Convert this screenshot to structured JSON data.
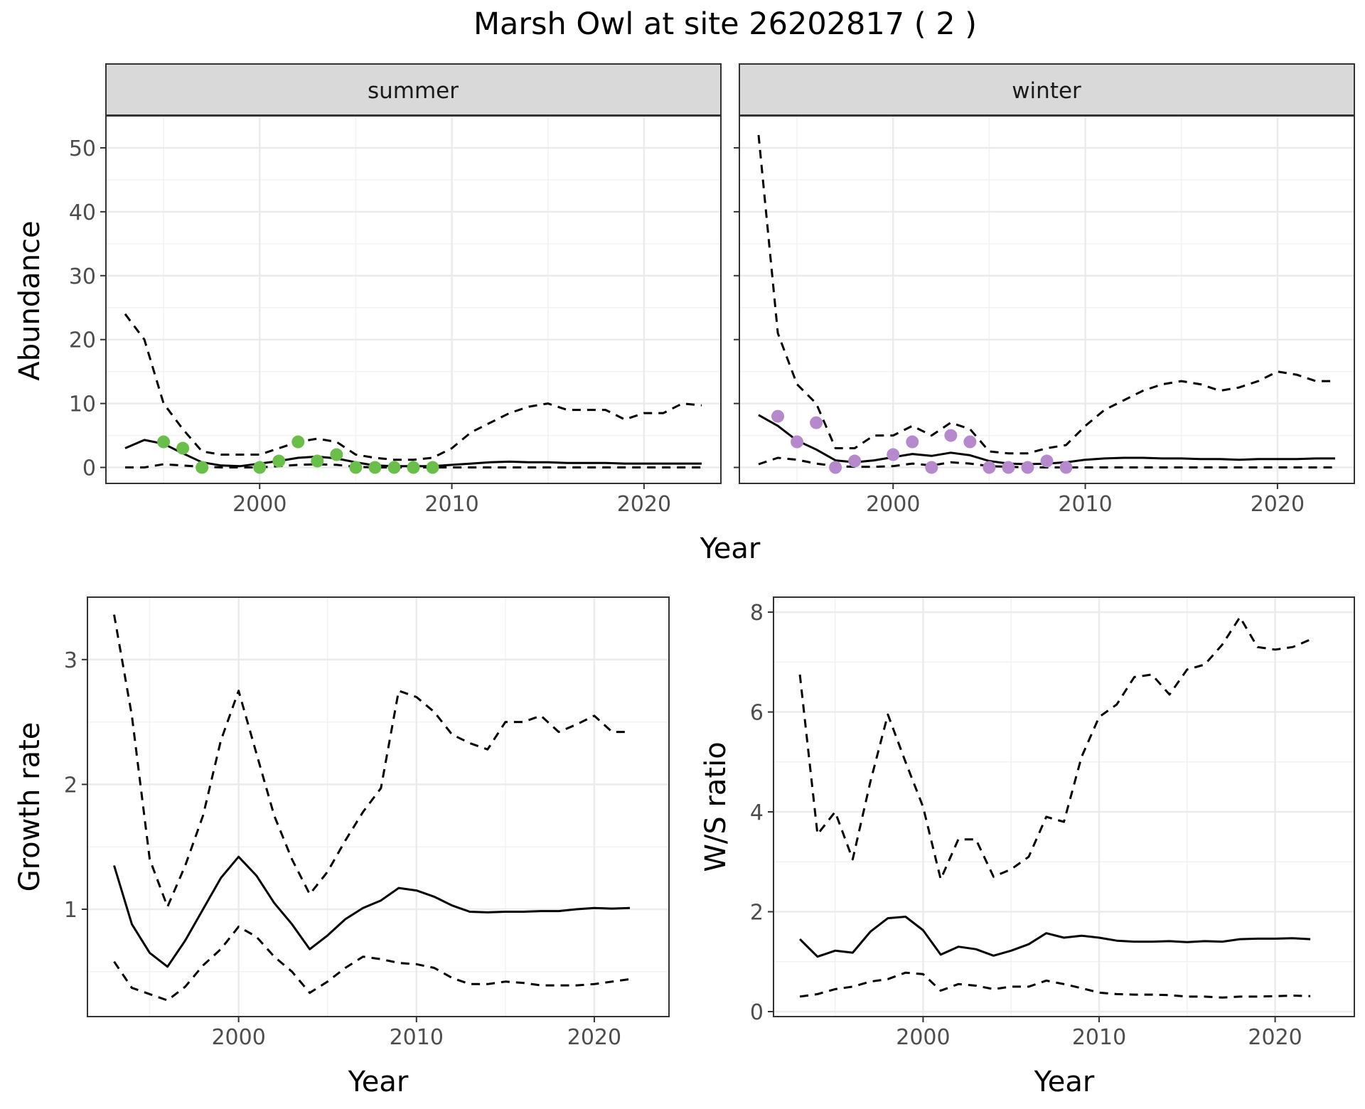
{
  "title": "Marsh Owl at site 26202817 ( 2 )",
  "colors": {
    "summer_points": "#6ABF4B",
    "winter_points": "#B589CC",
    "lines": "#000000",
    "strip_fill": "#D9D9D9",
    "grid_major": "#EBEBEB",
    "grid_minor": "#F2F2F2",
    "tick_text": "#4D4D4D"
  },
  "chart_data": [
    {
      "type": "line",
      "panel": "summer",
      "strip_label": "summer",
      "xlabel": "Year",
      "ylabel": "Abundance",
      "xlim": [
        1992,
        2024
      ],
      "ylim": [
        -2.5,
        55
      ],
      "xticks": [
        2000,
        2010,
        2020
      ],
      "yticks": [
        0,
        10,
        20,
        30,
        40,
        50
      ],
      "x": [
        1993,
        1994,
        1995,
        1996,
        1997,
        1998,
        1999,
        2000,
        2001,
        2002,
        2003,
        2004,
        2005,
        2006,
        2007,
        2008,
        2009,
        2010,
        2011,
        2012,
        2013,
        2014,
        2015,
        2016,
        2017,
        2018,
        2019,
        2020,
        2021,
        2022,
        2023
      ],
      "series": [
        {
          "style": "solid",
          "values": [
            3,
            4.3,
            3.7,
            2.2,
            0.8,
            0.3,
            0.2,
            0.6,
            1.0,
            1.5,
            1.7,
            1.4,
            0.8,
            0.3,
            0.2,
            0.2,
            0.2,
            0.4,
            0.6,
            0.8,
            0.9,
            0.8,
            0.8,
            0.7,
            0.7,
            0.7,
            0.6,
            0.6,
            0.6,
            0.6,
            0.6
          ]
        },
        {
          "style": "dashed",
          "values": [
            24,
            20,
            10,
            6,
            2.5,
            2,
            2,
            2,
            3,
            4,
            4.5,
            4,
            2,
            1.5,
            1.2,
            1.2,
            1.5,
            3,
            5.5,
            7,
            8.5,
            9.5,
            10,
            9,
            9,
            9,
            7.5,
            8.5,
            8.5,
            10,
            9.7
          ]
        },
        {
          "style": "dashed",
          "values": [
            0,
            0,
            0.5,
            0.3,
            0.1,
            0,
            0,
            0,
            0.2,
            0.4,
            0.5,
            0.4,
            0.1,
            0,
            0,
            0,
            0,
            0,
            0,
            0,
            0,
            0,
            0,
            0,
            0,
            0,
            0,
            0,
            0,
            0,
            0
          ]
        }
      ],
      "points": {
        "x": [
          1995,
          1996,
          1997,
          2000,
          2001,
          2002,
          2003,
          2004,
          2005,
          2006,
          2007,
          2008,
          2009
        ],
        "y": [
          4,
          3,
          0,
          0,
          1,
          4,
          1,
          2,
          0,
          0,
          0,
          0,
          0
        ]
      }
    },
    {
      "type": "line",
      "panel": "winter",
      "strip_label": "winter",
      "xlabel": "Year",
      "ylabel": "Abundance",
      "xlim": [
        1992,
        2024
      ],
      "ylim": [
        -2.5,
        55
      ],
      "xticks": [
        2000,
        2010,
        2020
      ],
      "yticks": [
        0,
        10,
        20,
        30,
        40,
        50
      ],
      "x": [
        1993,
        1994,
        1995,
        1996,
        1997,
        1998,
        1999,
        2000,
        2001,
        2002,
        2003,
        2004,
        2005,
        2006,
        2007,
        2008,
        2009,
        2010,
        2011,
        2012,
        2013,
        2014,
        2015,
        2016,
        2017,
        2018,
        2019,
        2020,
        2021,
        2022,
        2023
      ],
      "series": [
        {
          "style": "solid",
          "values": [
            8.2,
            6.5,
            4.2,
            2.8,
            1.1,
            0.8,
            1.1,
            1.6,
            2.1,
            1.8,
            2.3,
            1.9,
            1.0,
            0.6,
            0.5,
            0.6,
            0.8,
            1.2,
            1.4,
            1.5,
            1.5,
            1.4,
            1.4,
            1.3,
            1.3,
            1.2,
            1.3,
            1.3,
            1.3,
            1.4,
            1.4
          ]
        },
        {
          "style": "dashed",
          "values": [
            52,
            21,
            13,
            10,
            3,
            3,
            5,
            5,
            6.5,
            5,
            7,
            6,
            2.5,
            2.2,
            2.2,
            3,
            3.5,
            6.5,
            9,
            10.5,
            12,
            13,
            13.5,
            13,
            12,
            12.5,
            13.5,
            15,
            14.5,
            13.5,
            13.5
          ]
        },
        {
          "style": "dashed",
          "values": [
            0.5,
            1.5,
            1.2,
            0.6,
            0.2,
            0.1,
            0.1,
            0.2,
            0.6,
            0.3,
            0.8,
            0.6,
            0.2,
            0.1,
            0,
            0,
            0,
            0,
            0,
            0,
            0,
            0,
            0,
            0,
            0,
            0,
            0,
            0,
            0,
            0,
            0
          ]
        }
      ],
      "points": {
        "x": [
          1994,
          1995,
          1996,
          1997,
          1998,
          2000,
          2001,
          2002,
          2003,
          2004,
          2005,
          2006,
          2007,
          2008,
          2009
        ],
        "y": [
          8,
          4,
          7,
          0,
          1,
          2,
          4,
          0,
          5,
          4,
          0,
          0,
          0,
          1,
          0
        ]
      }
    },
    {
      "type": "line",
      "panel": "growth",
      "xlabel": "Year",
      "ylabel": "Growth rate",
      "xlim": [
        1991.5,
        2024.2
      ],
      "ylim": [
        0.14,
        3.5
      ],
      "xticks": [
        2000,
        2010,
        2020
      ],
      "yticks": [
        1,
        2,
        3
      ],
      "x": [
        1993,
        1994,
        1995,
        1996,
        1997,
        1998,
        1999,
        2000,
        2001,
        2002,
        2003,
        2004,
        2005,
        2006,
        2007,
        2008,
        2009,
        2010,
        2011,
        2012,
        2013,
        2014,
        2015,
        2016,
        2017,
        2018,
        2019,
        2020,
        2021,
        2022
      ],
      "series": [
        {
          "style": "solid",
          "values": [
            1.35,
            0.88,
            0.65,
            0.54,
            0.75,
            1.0,
            1.25,
            1.42,
            1.27,
            1.05,
            0.88,
            0.68,
            0.79,
            0.92,
            1.01,
            1.07,
            1.17,
            1.15,
            1.1,
            1.03,
            0.98,
            0.975,
            0.98,
            0.98,
            0.985,
            0.985,
            1.0,
            1.01,
            1.005,
            1.01
          ]
        },
        {
          "style": "dashed",
          "values": [
            3.36,
            2.55,
            1.4,
            1.02,
            1.35,
            1.75,
            2.35,
            2.75,
            2.25,
            1.75,
            1.4,
            1.12,
            1.3,
            1.55,
            1.78,
            1.97,
            2.75,
            2.7,
            2.58,
            2.4,
            2.33,
            2.28,
            2.5,
            2.5,
            2.55,
            2.42,
            2.48,
            2.55,
            2.42,
            2.42
          ]
        },
        {
          "style": "dashed",
          "values": [
            0.58,
            0.37,
            0.32,
            0.27,
            0.38,
            0.55,
            0.68,
            0.86,
            0.78,
            0.62,
            0.5,
            0.33,
            0.42,
            0.53,
            0.62,
            0.6,
            0.57,
            0.56,
            0.53,
            0.45,
            0.4,
            0.4,
            0.42,
            0.41,
            0.39,
            0.39,
            0.39,
            0.4,
            0.42,
            0.44
          ]
        }
      ]
    },
    {
      "type": "line",
      "panel": "ws_ratio",
      "xlabel": "Year",
      "ylabel": "W/S ratio",
      "xlim": [
        1991.5,
        2024.5
      ],
      "ylim": [
        -0.1,
        8.3
      ],
      "xticks": [
        2000,
        2010,
        2020
      ],
      "yticks": [
        0,
        2,
        4,
        6,
        8
      ],
      "x": [
        1993,
        1994,
        1995,
        1996,
        1997,
        1998,
        1999,
        2000,
        2001,
        2002,
        2003,
        2004,
        2005,
        2006,
        2007,
        2008,
        2009,
        2010,
        2011,
        2012,
        2013,
        2014,
        2015,
        2016,
        2017,
        2018,
        2019,
        2020,
        2021,
        2022
      ],
      "series": [
        {
          "style": "solid",
          "values": [
            1.45,
            1.1,
            1.22,
            1.18,
            1.6,
            1.87,
            1.9,
            1.63,
            1.14,
            1.3,
            1.25,
            1.12,
            1.22,
            1.35,
            1.57,
            1.48,
            1.52,
            1.48,
            1.42,
            1.4,
            1.4,
            1.41,
            1.39,
            1.41,
            1.4,
            1.45,
            1.46,
            1.46,
            1.47,
            1.45
          ]
        },
        {
          "style": "dashed",
          "values": [
            6.75,
            3.55,
            4.0,
            3.05,
            4.6,
            5.95,
            5.0,
            4.1,
            2.65,
            3.45,
            3.45,
            2.7,
            2.85,
            3.1,
            3.9,
            3.8,
            5.1,
            5.9,
            6.15,
            6.7,
            6.75,
            6.35,
            6.85,
            6.95,
            7.35,
            7.9,
            7.3,
            7.25,
            7.3,
            7.45
          ]
        },
        {
          "style": "dashed",
          "values": [
            0.3,
            0.35,
            0.45,
            0.5,
            0.6,
            0.65,
            0.78,
            0.75,
            0.42,
            0.55,
            0.52,
            0.45,
            0.5,
            0.5,
            0.62,
            0.55,
            0.47,
            0.38,
            0.35,
            0.34,
            0.34,
            0.33,
            0.3,
            0.3,
            0.28,
            0.3,
            0.3,
            0.31,
            0.32,
            0.31
          ]
        }
      ]
    }
  ]
}
